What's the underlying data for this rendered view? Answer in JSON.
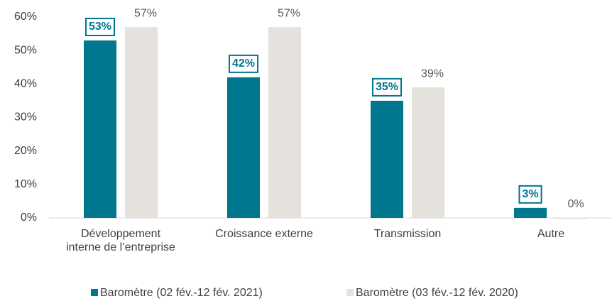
{
  "chart_data": {
    "type": "bar",
    "categories": [
      "Développement\ninterne de l’entreprise",
      "Croissance externe",
      "Transmission",
      "Autre"
    ],
    "series": [
      {
        "name": "Baromètre (02 fév.-12 fév. 2021)",
        "color": "#00778f",
        "values": [
          53,
          42,
          35,
          3
        ],
        "value_labels": [
          "53%",
          "42%",
          "35%",
          "3%"
        ]
      },
      {
        "name": "Baromètre (03 fév.-12 fév. 2020)",
        "color": "#e5e1dd",
        "values": [
          57,
          57,
          39,
          0
        ],
        "value_labels": [
          "57%",
          "57%",
          "39%",
          "0%"
        ]
      }
    ],
    "ylim": [
      0,
      60
    ],
    "yticks": [
      {
        "value": 0,
        "label": "0%"
      },
      {
        "value": 10,
        "label": "10%"
      },
      {
        "value": 20,
        "label": "20%"
      },
      {
        "value": 30,
        "label": "30%"
      },
      {
        "value": 40,
        "label": "40%"
      },
      {
        "value": 50,
        "label": "50%"
      },
      {
        "value": 60,
        "label": "60%"
      }
    ],
    "grid": false,
    "legend": "bottom"
  }
}
